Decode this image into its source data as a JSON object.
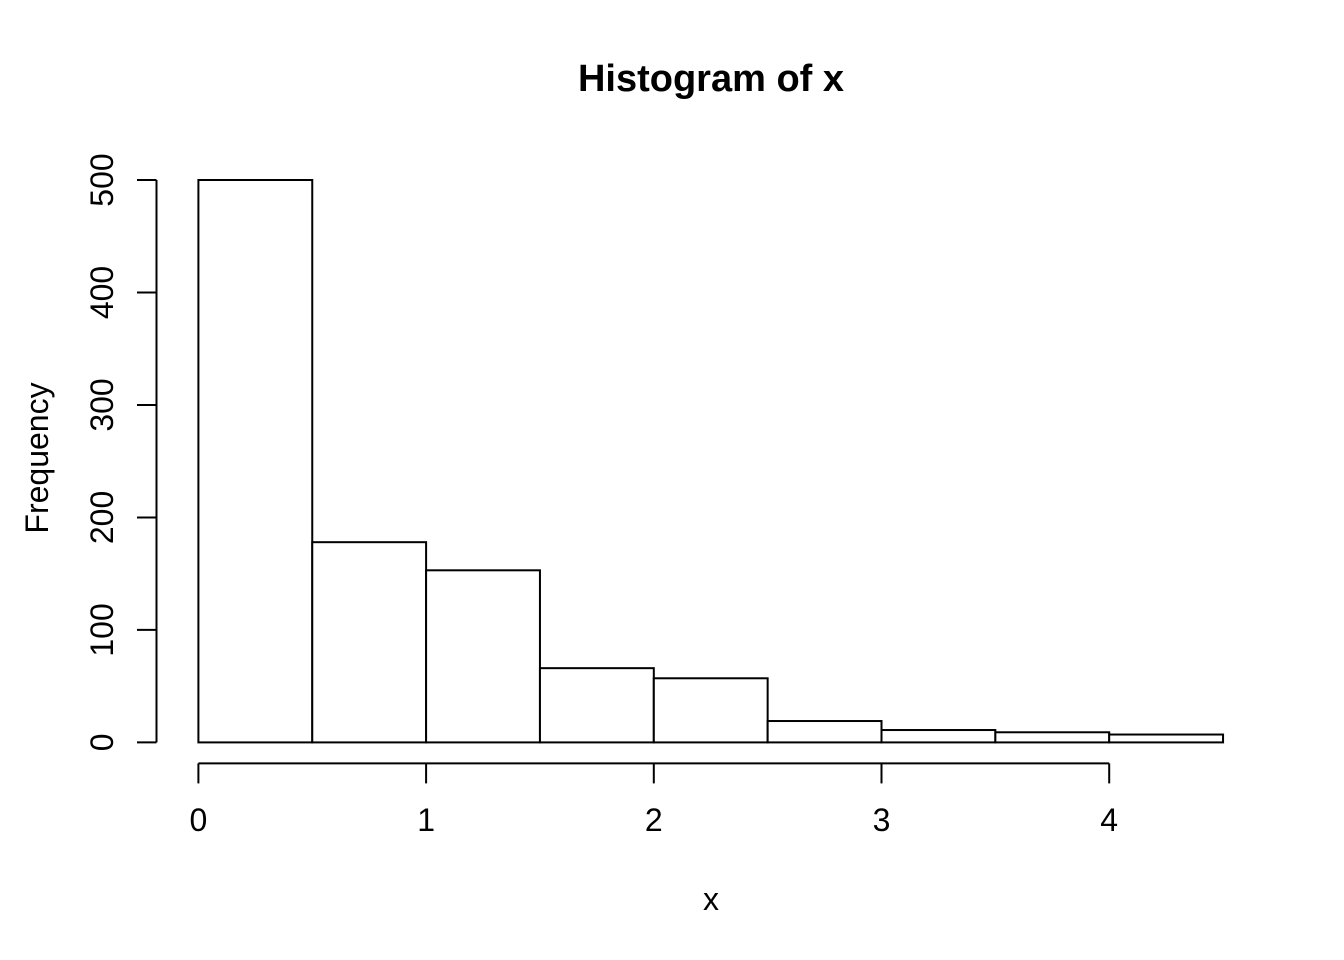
{
  "figure": {
    "title": "Histogram of x",
    "x_axis": {
      "label": "x",
      "tick_labels": [
        "0",
        "1",
        "2",
        "3",
        "4"
      ]
    },
    "y_axis": {
      "label": "Frequency",
      "tick_labels": [
        "0",
        "100",
        "200",
        "300",
        "400",
        "500"
      ]
    }
  },
  "chart_data": {
    "type": "bar",
    "subtype": "histogram",
    "title": "Histogram of x",
    "xlabel": "x",
    "ylabel": "Frequency",
    "bin_edges": [
      0,
      0.5,
      1,
      1.5,
      2,
      2.5,
      3,
      3.5,
      4,
      4.5
    ],
    "counts": [
      500,
      178,
      153,
      66,
      57,
      19,
      11,
      9,
      7
    ],
    "x_ticks": [
      0,
      1,
      2,
      3,
      4
    ],
    "y_ticks": [
      0,
      100,
      200,
      300,
      400,
      500
    ],
    "xlim": [
      0,
      4.5
    ],
    "ylim": [
      0,
      500
    ],
    "grid": false,
    "legend": false,
    "bar_fill": "#ffffff",
    "line_color": "#000000",
    "background": "#ffffff"
  }
}
